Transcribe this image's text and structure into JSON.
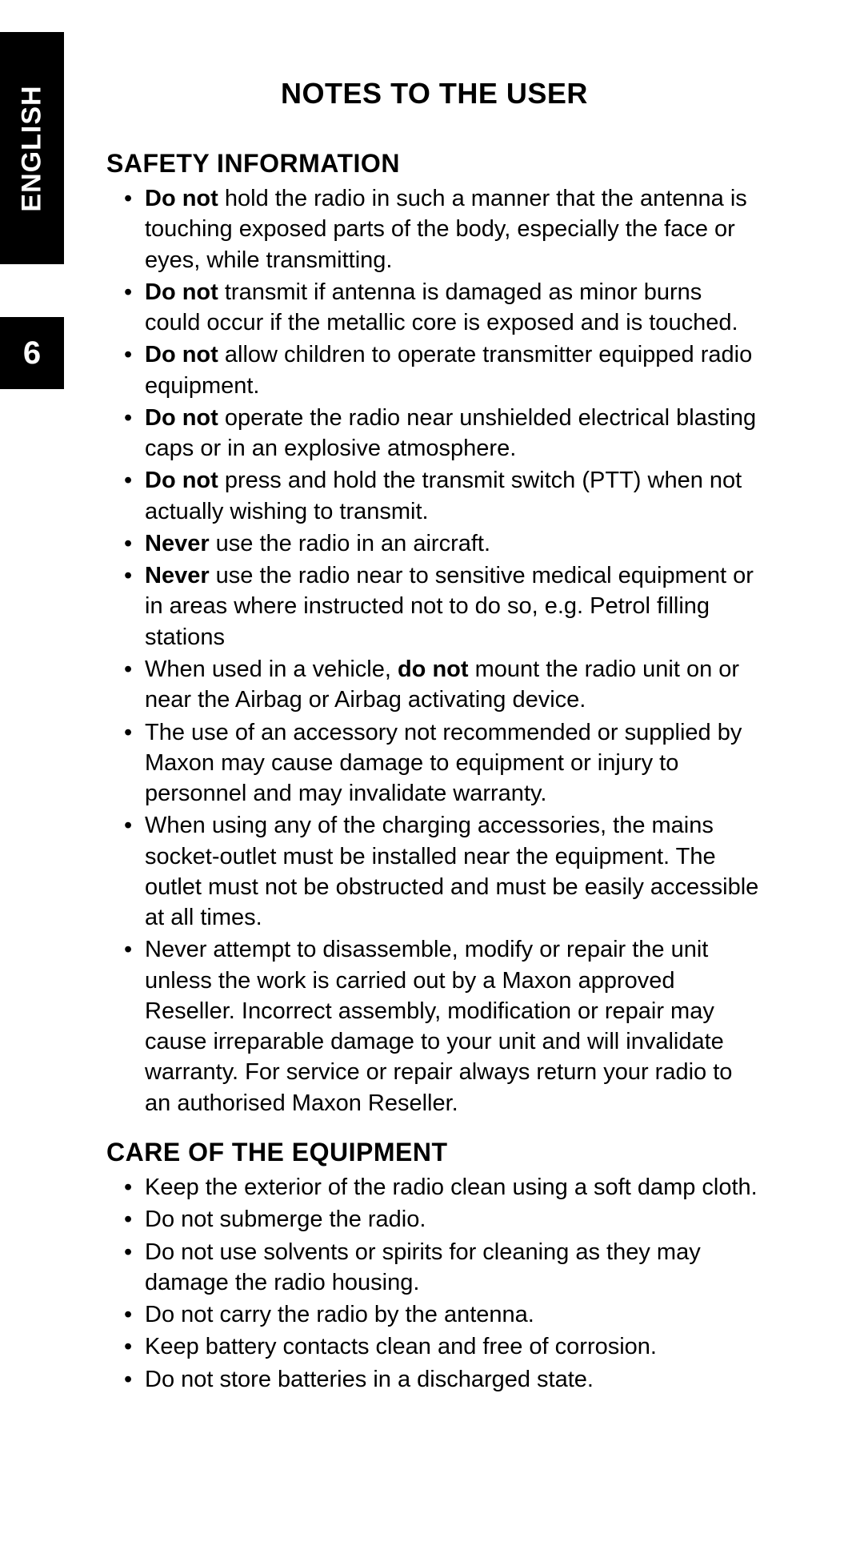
{
  "side": {
    "language": "ENGLISH",
    "page_number": "6"
  },
  "title": "NOTES TO THE USER",
  "sections": [
    {
      "heading": "SAFETY INFORMATION",
      "items": [
        [
          {
            "t": "Do not",
            "b": true
          },
          {
            "t": " hold the radio in such a manner that the antenna is touching exposed parts of the body, especially the face or eyes, while transmitting."
          }
        ],
        [
          {
            "t": "Do not",
            "b": true
          },
          {
            "t": " transmit if antenna is damaged as minor burns could occur if the metallic core is exposed and is touched."
          }
        ],
        [
          {
            "t": "Do not",
            "b": true
          },
          {
            "t": " allow children to operate transmitter equipped radio equipment."
          }
        ],
        [
          {
            "t": "Do not",
            "b": true
          },
          {
            "t": " operate the radio near unshielded electrical blasting caps or in an explosive atmosphere."
          }
        ],
        [
          {
            "t": "Do not",
            "b": true
          },
          {
            "t": " press and hold the transmit switch (PTT) when not actually wishing to transmit."
          }
        ],
        [
          {
            "t": "Never",
            "b": true
          },
          {
            "t": " use the radio in an aircraft."
          }
        ],
        [
          {
            "t": "Never",
            "b": true
          },
          {
            "t": " use the radio near to sensitive medical equipment or in areas where instructed not to do so, e.g. Petrol filling stations"
          }
        ],
        [
          {
            "t": "When used in a vehicle, "
          },
          {
            "t": "do not",
            "b": true
          },
          {
            "t": " mount the radio unit on or near the Airbag or Airbag activating device."
          }
        ],
        [
          {
            "t": "The use of an accessory not recommended or supplied by Maxon may cause damage to equipment or injury to personnel and may invalidate warranty."
          }
        ],
        [
          {
            "t": "When using any of the charging accessories, the mains socket-outlet must be installed near the equipment. The outlet must not be obstructed and must be easily accessible at all times."
          }
        ],
        [
          {
            "t": "Never attempt to disassemble, modify or repair  the unit unless the work is carried out by a Maxon approved Reseller.  Incorrect assembly, modification or repair may cause irreparable damage to your unit and will invalidate warranty.  For service or repair always return your radio to an authorised Maxon Reseller."
          }
        ]
      ]
    },
    {
      "heading": "CARE OF THE EQUIPMENT",
      "items": [
        [
          {
            "t": "Keep the exterior of the radio clean using a soft damp cloth."
          }
        ],
        [
          {
            "t": "Do not submerge the radio."
          }
        ],
        [
          {
            "t": "Do not use solvents or spirits for cleaning as they may damage the radio housing."
          }
        ],
        [
          {
            "t": "Do not carry the radio by the antenna."
          }
        ],
        [
          {
            "t": "Keep battery contacts clean and free of corrosion."
          }
        ],
        [
          {
            "t": "Do not store batteries in a discharged state."
          }
        ]
      ]
    }
  ]
}
